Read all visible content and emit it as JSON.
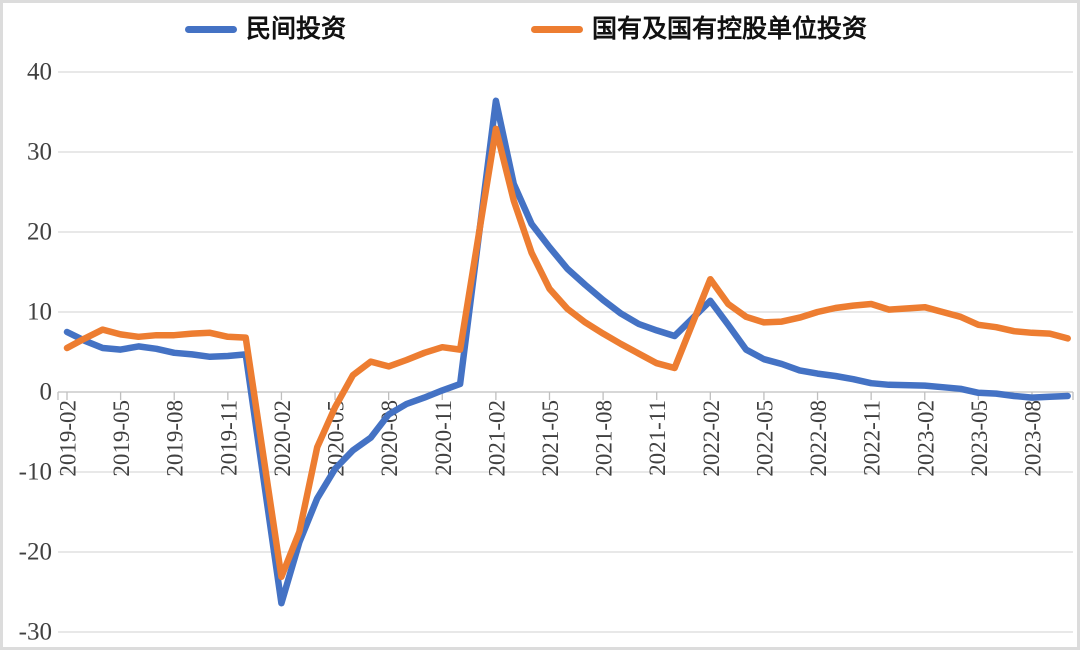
{
  "page": {
    "background": "#ffffff",
    "border_color": "#dcdcdc"
  },
  "legend": {
    "items": [
      {
        "label": "民间投资",
        "color": "#4472C4"
      },
      {
        "label": "国有及国有控股单位投资",
        "color": "#ED7D31"
      }
    ]
  },
  "chart_data": {
    "type": "line",
    "title": "",
    "xlabel": "",
    "ylabel": "",
    "grid": "horizontal",
    "legend_position": "top",
    "ylim": [
      -30,
      40
    ],
    "y_ticks": [
      40,
      30,
      20,
      10,
      0,
      -10,
      -20,
      -30
    ],
    "x_tick_labels": [
      "2019-02",
      "2019-05",
      "2019-08",
      "2019-11",
      "2020-02",
      "2020-05",
      "2020-08",
      "2020-11",
      "2021-02",
      "2021-05",
      "2021-08",
      "2021-11",
      "2022-02",
      "2022-05",
      "2022-08",
      "2022-11",
      "2023-02",
      "2023-05",
      "2023-08"
    ],
    "x": [
      "2019-02",
      "2019-03",
      "2019-04",
      "2019-05",
      "2019-06",
      "2019-07",
      "2019-08",
      "2019-09",
      "2019-10",
      "2019-11",
      "2019-12",
      "2020-02",
      "2020-03",
      "2020-04",
      "2020-05",
      "2020-06",
      "2020-07",
      "2020-08",
      "2020-09",
      "2020-10",
      "2020-11",
      "2020-12",
      "2021-02",
      "2021-03",
      "2021-04",
      "2021-05",
      "2021-06",
      "2021-07",
      "2021-08",
      "2021-09",
      "2021-10",
      "2021-11",
      "2021-12",
      "2022-02",
      "2022-03",
      "2022-04",
      "2022-05",
      "2022-06",
      "2022-07",
      "2022-08",
      "2022-09",
      "2022-10",
      "2022-11",
      "2022-12",
      "2023-02",
      "2023-03",
      "2023-04",
      "2023-05",
      "2023-06",
      "2023-07",
      "2023-08",
      "2023-09",
      "2023-10"
    ],
    "series": [
      {
        "name": "民间投资",
        "color": "#4472C4",
        "values": [
          7.5,
          6.4,
          5.5,
          5.3,
          5.7,
          5.4,
          4.9,
          4.7,
          4.4,
          4.5,
          4.7,
          -26.4,
          -18.8,
          -13.3,
          -9.6,
          -7.3,
          -5.7,
          -2.8,
          -1.5,
          -0.7,
          0.2,
          1.0,
          36.4,
          26.0,
          21.0,
          18.1,
          15.4,
          13.4,
          11.5,
          9.8,
          8.5,
          7.7,
          7.0,
          11.4,
          8.4,
          5.3,
          4.1,
          3.5,
          2.7,
          2.3,
          2.0,
          1.6,
          1.1,
          0.9,
          0.8,
          0.6,
          0.4,
          -0.1,
          -0.2,
          -0.5,
          -0.7,
          -0.6,
          -0.5
        ]
      },
      {
        "name": "国有及国有控股单位投资",
        "color": "#ED7D31",
        "values": [
          5.5,
          6.7,
          7.8,
          7.2,
          6.9,
          7.1,
          7.1,
          7.3,
          7.4,
          6.9,
          6.8,
          -23.1,
          -17.5,
          -6.9,
          -1.9,
          2.1,
          3.8,
          3.2,
          4.0,
          4.9,
          5.6,
          5.3,
          32.9,
          23.9,
          17.4,
          12.9,
          10.4,
          8.7,
          7.3,
          6.0,
          4.8,
          3.6,
          3.0,
          14.1,
          11.0,
          9.4,
          8.7,
          8.8,
          9.3,
          10.0,
          10.5,
          10.8,
          11.0,
          10.3,
          10.6,
          10.0,
          9.4,
          8.4,
          8.1,
          7.6,
          7.4,
          7.3,
          6.7
        ]
      }
    ],
    "style": {
      "axis_color": "#BFBFBF",
      "grid_color": "#D9D9D9",
      "tick_label_color": "#404040",
      "line_width": 6.5
    }
  }
}
